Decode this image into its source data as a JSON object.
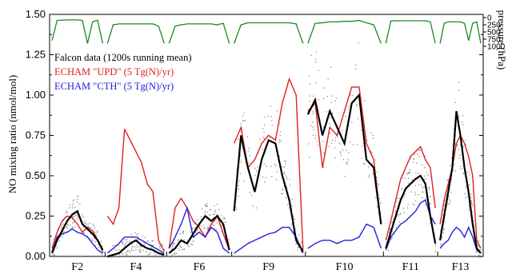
{
  "chart_data": {
    "type": "line",
    "title": "",
    "ylabel": "NO mixing ratio (nmol/mol)",
    "ylabel_right": "pressure (hPa)",
    "ylim": [
      0,
      1.5
    ],
    "yticks": [
      "0.00",
      "0.25",
      "0.50",
      "0.75",
      "1.00",
      "1.25",
      "1.50"
    ],
    "pressure_ticks": [
      "0",
      "250",
      "500",
      "750",
      "1000"
    ],
    "pressure_lim": [
      0,
      1000
    ],
    "grid": false,
    "legend_position": "upper-left",
    "legend": [
      {
        "label": "Falcon data (1200s running mean)",
        "color": "#000000"
      },
      {
        "label": "ECHAM \"UPD\" (5 Tg(N)/yr)",
        "color": "#e02020"
      },
      {
        "label": "ECHAM \"CTH\" (5 Tg(N)/yr)",
        "color": "#2020e0"
      }
    ],
    "flights": [
      {
        "name": "F2",
        "upd": [
          0.05,
          0.15,
          0.22,
          0.25,
          0.24,
          0.2,
          0.15,
          0.18,
          0.16,
          0.1,
          0.03
        ],
        "cth": [
          0.03,
          0.12,
          0.14,
          0.15,
          0.17,
          0.15,
          0.14,
          0.12,
          0.08,
          0.04,
          0.02
        ],
        "falcon": [
          0.02,
          0.1,
          0.16,
          0.22,
          0.26,
          0.28,
          0.2,
          0.17,
          0.14,
          0.1,
          0.04
        ],
        "pressure": [
          800,
          100,
          90,
          80,
          80,
          80,
          100,
          900,
          150,
          90,
          900
        ]
      },
      {
        "name": "F4",
        "upd": [
          0.25,
          0.2,
          0.3,
          0.79,
          0.72,
          0.65,
          0.58,
          0.45,
          0.4,
          0.1,
          0.03
        ],
        "cth": [
          0.02,
          0.05,
          0.08,
          0.12,
          0.12,
          0.12,
          0.1,
          0.08,
          0.06,
          0.04,
          0.02
        ],
        "falcon": [
          0.0,
          0.01,
          0.02,
          0.05,
          0.08,
          0.1,
          0.07,
          0.05,
          0.04,
          0.02,
          0.01
        ],
        "pressure": [
          900,
          250,
          220,
          220,
          220,
          220,
          220,
          220,
          220,
          300,
          900
        ]
      },
      {
        "name": "F6",
        "upd": [
          0.05,
          0.3,
          0.36,
          0.3,
          0.22,
          0.18,
          0.12,
          0.2,
          0.25,
          0.14,
          0.04
        ],
        "cth": [
          0.05,
          0.12,
          0.2,
          0.3,
          0.12,
          0.15,
          0.12,
          0.18,
          0.15,
          0.05,
          0.02
        ],
        "falcon": [
          0.02,
          0.05,
          0.1,
          0.08,
          0.14,
          0.2,
          0.25,
          0.22,
          0.25,
          0.2,
          0.04
        ],
        "pressure": [
          900,
          300,
          250,
          220,
          220,
          220,
          220,
          220,
          250,
          200,
          900
        ]
      },
      {
        "name": "F9",
        "upd": [
          0.7,
          0.8,
          0.55,
          0.6,
          0.7,
          0.75,
          0.72,
          0.95,
          1.1,
          1.0,
          0.04
        ],
        "cth": [
          0.02,
          0.05,
          0.08,
          0.1,
          0.12,
          0.14,
          0.15,
          0.18,
          0.18,
          0.12,
          0.02
        ],
        "falcon": [
          0.28,
          0.75,
          0.55,
          0.4,
          0.6,
          0.72,
          0.7,
          0.5,
          0.35,
          0.1,
          0.03
        ],
        "pressure": [
          900,
          250,
          180,
          180,
          180,
          180,
          180,
          180,
          180,
          220,
          900
        ]
      },
      {
        "name": "F10",
        "upd": [
          0.9,
          0.95,
          0.55,
          0.8,
          0.75,
          0.9,
          1.05,
          1.05,
          0.7,
          0.6,
          0.2
        ],
        "cth": [
          0.05,
          0.08,
          0.1,
          0.1,
          0.08,
          0.1,
          0.1,
          0.12,
          0.2,
          0.18,
          0.05
        ],
        "falcon": [
          0.88,
          0.97,
          0.75,
          0.9,
          0.8,
          0.7,
          0.95,
          1.0,
          0.6,
          0.55,
          0.2
        ],
        "pressure": [
          900,
          200,
          180,
          150,
          150,
          130,
          130,
          100,
          180,
          250,
          900
        ]
      },
      {
        "name": "F11",
        "upd": [
          0.1,
          0.22,
          0.35,
          0.48,
          0.55,
          0.62,
          0.65,
          0.68,
          0.6,
          0.55,
          0.3
        ],
        "cth": [
          0.04,
          0.12,
          0.16,
          0.2,
          0.22,
          0.25,
          0.28,
          0.33,
          0.35,
          0.25,
          0.2
        ],
        "falcon": [
          0.05,
          0.15,
          0.25,
          0.35,
          0.42,
          0.45,
          0.48,
          0.5,
          0.45,
          0.25,
          0.08
        ],
        "pressure": [
          900,
          120,
          110,
          110,
          110,
          110,
          110,
          110,
          110,
          150,
          900
        ]
      },
      {
        "name": "F13",
        "upd": [
          0.2,
          0.35,
          0.45,
          0.55,
          0.7,
          0.75,
          0.7,
          0.62,
          0.5,
          0.1,
          0.05
        ],
        "cth": [
          0.05,
          0.08,
          0.1,
          0.15,
          0.18,
          0.16,
          0.12,
          0.18,
          0.12,
          0.04,
          0.02
        ],
        "falcon": [
          0.1,
          0.25,
          0.4,
          0.55,
          0.9,
          0.75,
          0.55,
          0.4,
          0.2,
          0.05,
          0.02
        ],
        "pressure": [
          900,
          200,
          150,
          150,
          150,
          150,
          200,
          800,
          200,
          150,
          900
        ]
      }
    ]
  }
}
